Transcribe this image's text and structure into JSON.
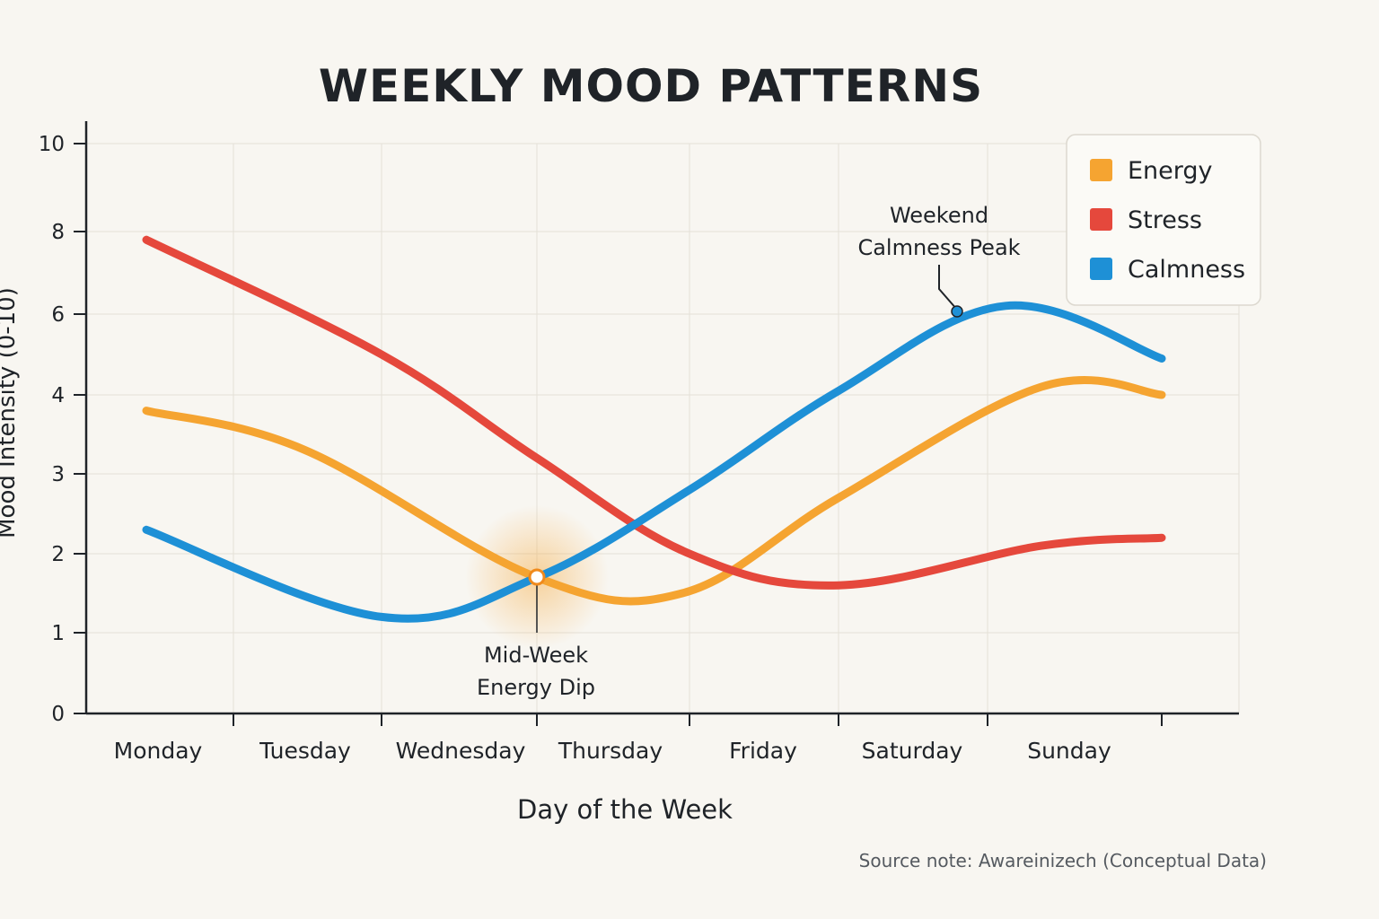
{
  "chart_data": {
    "type": "line",
    "title": "WEEKLY MOOD PATTERNS",
    "xlabel": "Day of the Week",
    "ylabel": "Mood Intensity (0-10)",
    "categories": [
      "Monday",
      "Tuesday",
      "Wednesday",
      "Thursday",
      "Friday",
      "Saturday",
      "Sunday"
    ],
    "y_ticks": [
      "0",
      "1",
      "2",
      "3",
      "4",
      "6",
      "8",
      "10"
    ],
    "series": [
      {
        "name": "Energy",
        "color": "#f5a431",
        "values": [
          3.8,
          3.3,
          1.7,
          1.5,
          2.7,
          4.2,
          4.0
        ]
      },
      {
        "name": "Stress",
        "color": "#e5483c",
        "values": [
          7.8,
          5.0,
          3.2,
          2.0,
          1.6,
          2.1,
          2.2
        ]
      },
      {
        "name": "Calmness",
        "color": "#1e90d6",
        "values": [
          2.3,
          1.2,
          1.7,
          2.8,
          4.1,
          6.2,
          4.9
        ]
      }
    ],
    "legend_position": "top-right",
    "grid": true,
    "annotations": [
      {
        "text_lines": [
          "Mid-Week",
          "Energy Dip"
        ],
        "target_series": "Energy",
        "target_category": "Thursday"
      },
      {
        "text_lines": [
          "Weekend",
          "Calmness Peak"
        ],
        "target_series": "Calmness",
        "target_category": "Saturday"
      }
    ],
    "source_note": "Source note: Awareinizech (Conceptual Data)"
  }
}
